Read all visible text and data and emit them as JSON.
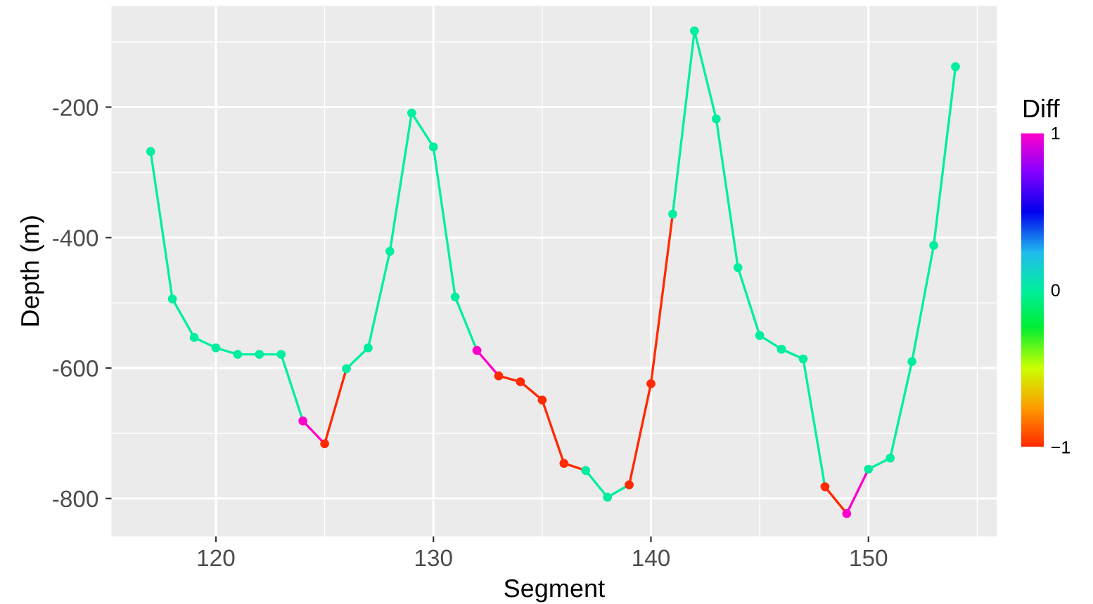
{
  "chart_data": {
    "type": "scatter",
    "xlabel": "Segment",
    "ylabel": "Depth (m)",
    "clabel": "Diff",
    "x": [
      117,
      118,
      119,
      120,
      121,
      122,
      123,
      124,
      125,
      126,
      127,
      128,
      129,
      130,
      131,
      132,
      133,
      134,
      135,
      136,
      137,
      138,
      139,
      140,
      141,
      142,
      143,
      144,
      145,
      146,
      147,
      148,
      149,
      150,
      151,
      152,
      153,
      154
    ],
    "series": [
      {
        "type": "line",
        "color": "#00eea0",
        "x": [
          117,
          118,
          119,
          120,
          121,
          122,
          123,
          124
        ],
        "values": [
          -268,
          -494,
          -553,
          -569,
          -579,
          -579,
          -579,
          -681
        ]
      },
      {
        "type": "line",
        "color": "#ff00cc",
        "x": [
          124,
          125
        ],
        "values": [
          -681,
          -716
        ]
      },
      {
        "type": "line",
        "color": "#ff2a00",
        "x": [
          125,
          126
        ],
        "values": [
          -716,
          -601
        ]
      },
      {
        "type": "line",
        "color": "#00eea0",
        "x": [
          126,
          127,
          128,
          129,
          130,
          131,
          132
        ],
        "values": [
          -601,
          -569,
          -421,
          -209,
          -261,
          -491,
          -573
        ]
      },
      {
        "type": "line",
        "color": "#ff00cc",
        "x": [
          132,
          133
        ],
        "values": [
          -573,
          -612
        ]
      },
      {
        "type": "line",
        "color": "#ff2a00",
        "x": [
          133,
          134,
          135,
          136,
          137
        ],
        "values": [
          -612,
          -621,
          -649,
          -746,
          -757
        ]
      },
      {
        "type": "line",
        "color": "#00eea0",
        "x": [
          137,
          138,
          139
        ],
        "values": [
          -757,
          -798,
          -779
        ]
      },
      {
        "type": "line",
        "color": "#ff2a00",
        "x": [
          139,
          140,
          141
        ],
        "values": [
          -779,
          -624,
          -364
        ]
      },
      {
        "type": "line",
        "color": "#00eea0",
        "x": [
          141,
          142,
          143,
          144,
          145,
          146,
          147,
          148
        ],
        "values": [
          -364,
          -83,
          -218,
          -446,
          -550,
          -571,
          -586,
          -782
        ]
      },
      {
        "type": "line",
        "color": "#ff2a00",
        "x": [
          148,
          149
        ],
        "values": [
          -782,
          -823
        ]
      },
      {
        "type": "line",
        "color": "#ff00cc",
        "x": [
          149,
          150
        ],
        "values": [
          -823,
          -755
        ]
      },
      {
        "type": "line",
        "color": "#00eea0",
        "x": [
          150,
          151,
          152,
          153,
          154
        ],
        "values": [
          -755,
          -738,
          -590,
          -412,
          -138
        ]
      },
      {
        "values": [
          -268,
          -494,
          -553,
          -569,
          -579,
          -579,
          -579,
          -681,
          -716,
          -601,
          -569,
          -421,
          -209,
          -261,
          -491,
          -573,
          -612,
          -621,
          -649,
          -746,
          -757,
          -798,
          -779,
          -624,
          -364,
          -83,
          -218,
          -446,
          -550,
          -571,
          -586,
          -782,
          -823,
          -755,
          -738,
          -590,
          -412,
          -138
        ],
        "cvalues": [
          0,
          0,
          0,
          0,
          0,
          0,
          0,
          1,
          -1,
          0,
          0,
          0,
          0,
          0,
          0,
          1,
          -1,
          -1,
          -1,
          -1,
          0,
          0,
          -1,
          -1,
          0,
          0,
          0,
          0,
          0,
          0,
          0,
          -1,
          1,
          0,
          0,
          0,
          0,
          0
        ],
        "colors": [
          "#00eea0",
          "#00eea0",
          "#00eea0",
          "#00eea0",
          "#00eea0",
          "#00eea0",
          "#00eea0",
          "#ff00cc",
          "#ff2a00",
          "#00eea0",
          "#00eea0",
          "#00eea0",
          "#00eea0",
          "#00eea0",
          "#00eea0",
          "#ff00cc",
          "#ff2a00",
          "#ff2a00",
          "#ff2a00",
          "#ff2a00",
          "#00eea0",
          "#00eea0",
          "#ff2a00",
          "#ff2a00",
          "#00eea0",
          "#00eea0",
          "#00eea0",
          "#00eea0",
          "#00eea0",
          "#00eea0",
          "#00eea0",
          "#ff2a00",
          "#ff00cc",
          "#00eea0",
          "#00eea0",
          "#00eea0",
          "#00eea0",
          "#00eea0"
        ],
        "marker": "circle"
      }
    ],
    "line_style": "solid",
    "xlim": [
      115.2,
      155.9
    ],
    "ylim": [
      -858,
      -45
    ],
    "xticks": [
      120,
      130,
      140,
      150
    ],
    "yticks": [
      -800,
      -600,
      -400,
      -200
    ],
    "clim": [
      -1,
      1
    ],
    "cticks": [
      -1,
      0,
      1
    ],
    "grid": true,
    "legend": false
  }
}
